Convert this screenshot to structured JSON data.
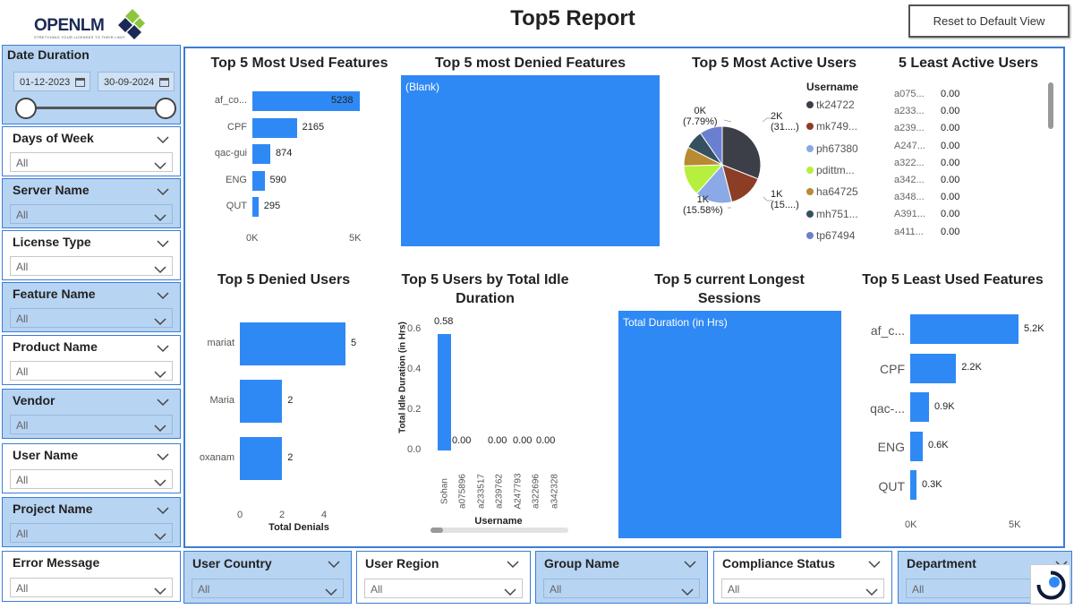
{
  "header": {
    "logo_text": "OPENLM",
    "logo_tagline": "STRETCHING YOUR LICENSES TO THEIR LIMIT",
    "title": "Top5 Report",
    "reset_label": "Reset to Default View"
  },
  "date_slicer": {
    "title": "Date Duration",
    "start": "01-12-2023",
    "end": "30-09-2024"
  },
  "left_slicers": [
    {
      "title": "Days of Week",
      "value": "All"
    },
    {
      "title": "Server Name",
      "value": "All"
    },
    {
      "title": "License Type",
      "value": "All"
    },
    {
      "title": "Feature Name",
      "value": "All"
    },
    {
      "title": "Product Name",
      "value": "All"
    },
    {
      "title": "Vendor",
      "value": "All"
    },
    {
      "title": "User Name",
      "value": "All"
    },
    {
      "title": "Project Name",
      "value": "All"
    },
    {
      "title": "Error Message",
      "value": "All"
    }
  ],
  "bottom_slicers": [
    {
      "title": "User Country",
      "value": "All"
    },
    {
      "title": "User Region",
      "value": "All"
    },
    {
      "title": "Group Name",
      "value": "All"
    },
    {
      "title": "Compliance Status",
      "value": "All"
    },
    {
      "title": "Department",
      "value": "All"
    }
  ],
  "visuals": {
    "most_used": {
      "title": "Top 5 Most Used Features",
      "labels": [
        "af_co...",
        "CPF",
        "qac-gui",
        "ENG",
        "QUT"
      ],
      "data_labels": [
        "5238",
        "2165",
        "874",
        "590",
        "295"
      ],
      "ticks": [
        "0K",
        "5K"
      ]
    },
    "most_denied": {
      "title": "Top 5 most Denied Features",
      "blank_label": "(Blank)"
    },
    "most_active": {
      "title": "Top 5 Most Active Users",
      "legend_title": "Username",
      "legend": [
        "tk24722",
        "mk749...",
        "ph67380",
        "pdittm...",
        "ha64725",
        "mh751...",
        "tp67494"
      ],
      "slice_labels": [
        {
          "value": "2K",
          "pct": "(31....)"
        },
        {
          "value": "1K",
          "pct": "(15....)"
        },
        {
          "value": "1K",
          "pct": "(15.58%)"
        },
        {
          "value": "0K",
          "pct": "(7.79%)"
        }
      ]
    },
    "least_active": {
      "title": "5 Least Active Users",
      "rows": [
        {
          "user": "a075...",
          "value": "0.00"
        },
        {
          "user": "a233...",
          "value": "0.00"
        },
        {
          "user": "a239...",
          "value": "0.00"
        },
        {
          "user": "A247...",
          "value": "0.00"
        },
        {
          "user": "a322...",
          "value": "0.00"
        },
        {
          "user": "a342...",
          "value": "0.00"
        },
        {
          "user": "a348...",
          "value": "0.00"
        },
        {
          "user": "A391...",
          "value": "0.00"
        },
        {
          "user": "a411...",
          "value": "0.00"
        }
      ]
    },
    "denied_users": {
      "title": "Top 5 Denied Users",
      "labels": [
        "mariat",
        "Maria",
        "oxanam"
      ],
      "data_labels": [
        "5",
        "2",
        "2"
      ],
      "ticks": [
        "0",
        "2",
        "4"
      ],
      "xlabel": "Total Denials"
    },
    "idle": {
      "title": "Top 5 Users by Total Idle Duration",
      "ylabel": "Total Idle Duration (in Hrs)",
      "xlabel": "Username",
      "categories": [
        "Sohan",
        "a075896",
        "a233517",
        "a239762",
        "A247793",
        "a322696",
        "a342328"
      ],
      "data_labels": [
        "0.58",
        "0.00",
        "0.00",
        "0.00",
        "0.00"
      ],
      "yticks": [
        "0.6",
        "0.4",
        "0.2",
        "0.0"
      ]
    },
    "longest_sessions": {
      "title": "Top 5 current Longest Sessions",
      "blank_label": "Total Duration (in Hrs)"
    },
    "least_used": {
      "title": "Top 5 Least Used Features",
      "labels": [
        "af_c...",
        "CPF",
        "qac-...",
        "ENG",
        "QUT"
      ],
      "data_labels": [
        "5.2K",
        "2.2K",
        "0.9K",
        "0.6K",
        "0.3K"
      ],
      "ticks": [
        "0K",
        "5K"
      ]
    }
  },
  "chart_data": [
    {
      "type": "bar",
      "title": "Top 5 Most Used Features",
      "categories": [
        "af_co...",
        "CPF",
        "qac-gui",
        "ENG",
        "QUT"
      ],
      "values": [
        5238,
        2165,
        874,
        590,
        295
      ],
      "xlim": [
        0,
        5238
      ]
    },
    {
      "type": "pie",
      "title": "Top 5 Most Active Users",
      "categories": [
        "tk24722",
        "mk749...",
        "ph67380",
        "pdittm...",
        "ha64725",
        "mh751...",
        "tp67494"
      ],
      "values": [
        31,
        15,
        15.58,
        13,
        8,
        7.79,
        9.63
      ],
      "colors": [
        "#3c3f48",
        "#8c3d26",
        "#8aa9e6",
        "#b6ef3e",
        "#b88a32",
        "#35505e",
        "#6b7fd0"
      ]
    },
    {
      "type": "bar",
      "title": "Top 5 Denied Users",
      "categories": [
        "mariat",
        "Maria",
        "oxanam"
      ],
      "values": [
        5,
        2,
        2
      ],
      "xlabel": "Total Denials",
      "xlim": [
        0,
        5
      ]
    },
    {
      "type": "bar",
      "title": "Top 5 Users by Total Idle Duration",
      "categories": [
        "Sohan",
        "a075896",
        "a233517",
        "a239762",
        "A247793",
        "a322696",
        "a342328"
      ],
      "values": [
        0.58,
        0,
        0,
        0,
        0,
        0,
        0
      ],
      "xlabel": "Username",
      "ylabel": "Total Idle Duration (in Hrs)",
      "ylim": [
        0,
        0.6
      ]
    },
    {
      "type": "bar",
      "title": "Top 5 Least Used Features",
      "categories": [
        "af_c...",
        "CPF",
        "qac-...",
        "ENG",
        "QUT"
      ],
      "values": [
        5.2,
        2.2,
        0.9,
        0.6,
        0.3
      ],
      "xlim": [
        0,
        5.2
      ]
    }
  ],
  "colors": {
    "bar": "#2f89f5",
    "slicer_blue": "#b7d4f3",
    "border": "#3a7dd6"
  }
}
